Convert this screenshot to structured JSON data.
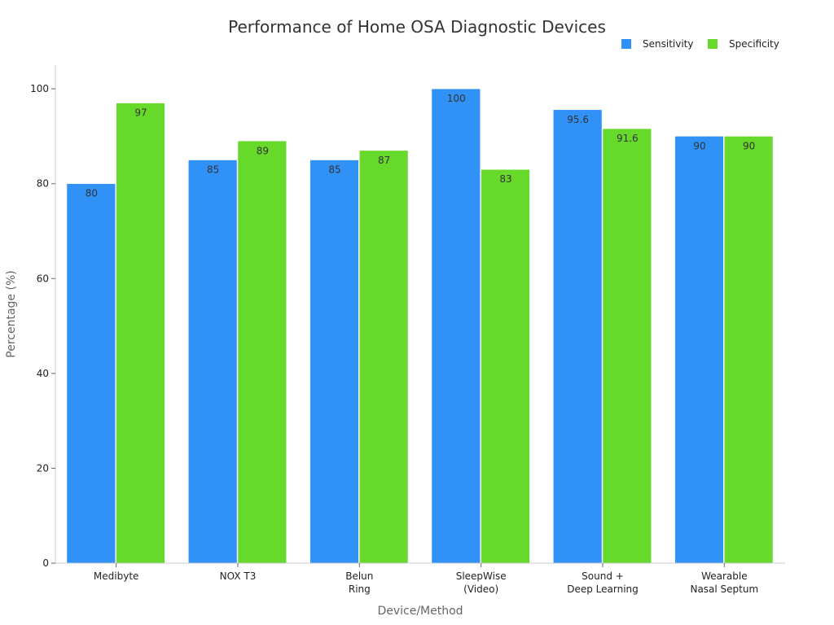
{
  "chart_data": {
    "type": "bar",
    "title": "Performance of Home OSA Diagnostic Devices",
    "xlabel": "Device/Method",
    "ylabel": "Percentage (%)",
    "ylim": [
      0,
      105
    ],
    "yticks": [
      0,
      20,
      40,
      60,
      80,
      100
    ],
    "grid": false,
    "legend_position": "top-right",
    "categories": [
      [
        "Medibyte"
      ],
      [
        "NOX T3"
      ],
      [
        "Belun",
        "Ring"
      ],
      [
        "SleepWise",
        "(Video)"
      ],
      [
        "Sound +",
        "Deep Learning"
      ],
      [
        "Wearable",
        "Nasal Septum"
      ]
    ],
    "series": [
      {
        "name": "Sensitivity",
        "color": "#3091F7",
        "values": [
          80,
          85,
          85,
          100,
          95.6,
          90
        ]
      },
      {
        "name": "Specificity",
        "color": "#66D92B",
        "values": [
          97,
          89,
          87,
          83,
          91.6,
          90
        ]
      }
    ]
  }
}
